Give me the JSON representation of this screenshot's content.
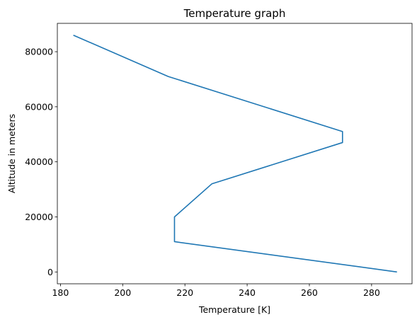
{
  "chart_data": {
    "type": "line",
    "title": "Temperature graph",
    "xlabel": "Temperature [K]",
    "ylabel": "Altitude in meters",
    "xlim": [
      179,
      293
    ],
    "ylim": [
      -4300,
      90300
    ],
    "xticks": [
      180,
      200,
      220,
      240,
      260,
      280
    ],
    "yticks": [
      0,
      20000,
      40000,
      60000,
      80000
    ],
    "grid": false,
    "series": [
      {
        "color": "#1f77b4",
        "x": [
          288.15,
          216.65,
          216.65,
          228.65,
          270.65,
          270.65,
          214.65,
          184.15
        ],
        "y": [
          0,
          11000,
          20000,
          32000,
          47000,
          51000,
          71000,
          86000
        ]
      }
    ]
  }
}
